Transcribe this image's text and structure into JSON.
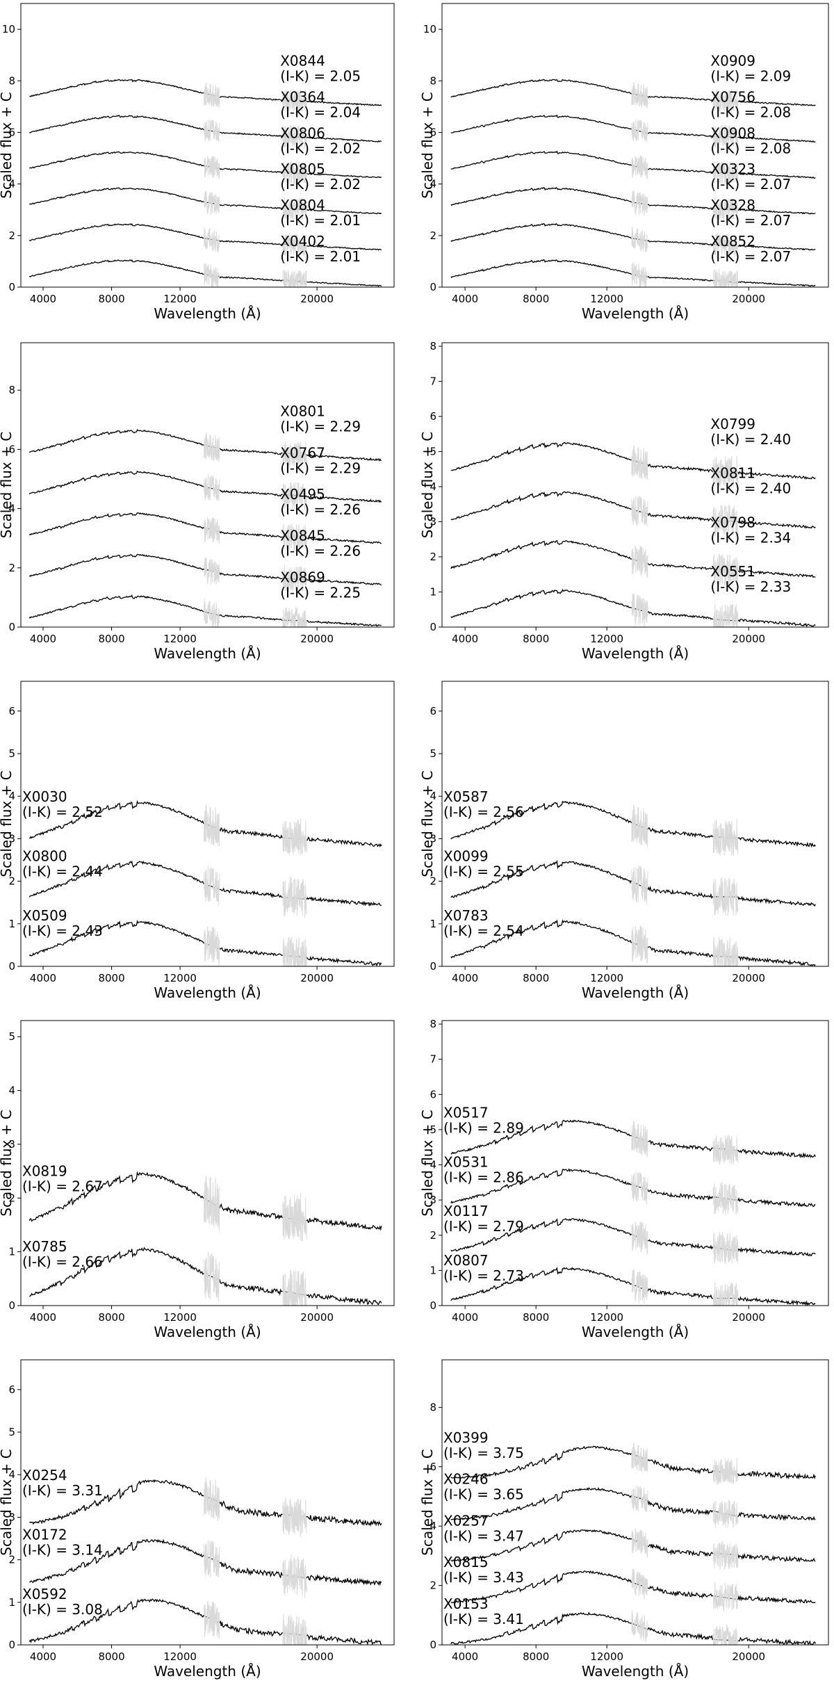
{
  "chart_data": [
    {
      "type": "line",
      "xlabel": "Wavelength (Å)",
      "ylabel": "Scaled flux + C",
      "xticks": [
        4000,
        8000,
        12000,
        20000
      ],
      "ylim": [
        0,
        11
      ],
      "yticks": [
        0,
        2,
        4,
        6,
        8,
        10
      ],
      "label_side": "right",
      "series": [
        {
          "name": "X0844",
          "color_index": "(I-K) = 2.05",
          "offset": 7.0
        },
        {
          "name": "X0364",
          "color_index": "(I-K) = 2.04",
          "offset": 5.6
        },
        {
          "name": "X0806",
          "color_index": "(I-K) = 2.02",
          "offset": 4.2
        },
        {
          "name": "X0805",
          "color_index": "(I-K) = 2.02",
          "offset": 2.8
        },
        {
          "name": "X0804",
          "color_index": "(I-K) = 2.01",
          "offset": 1.4
        },
        {
          "name": "X0402",
          "color_index": "(I-K) = 2.01",
          "offset": 0.0
        }
      ]
    },
    {
      "type": "line",
      "xlabel": "Wavelength (Å)",
      "ylabel": "Scaled flux + C",
      "xticks": [
        4000,
        8000,
        12000,
        20000
      ],
      "ylim": [
        0,
        11
      ],
      "yticks": [
        0,
        2,
        4,
        6,
        8,
        10
      ],
      "label_side": "right",
      "series": [
        {
          "name": "X0909",
          "color_index": "(I-K) = 2.09",
          "offset": 7.0
        },
        {
          "name": "X0756",
          "color_index": "(I-K) = 2.08",
          "offset": 5.6
        },
        {
          "name": "X0908",
          "color_index": "(I-K) = 2.08",
          "offset": 4.2
        },
        {
          "name": "X0323",
          "color_index": "(I-K) = 2.07",
          "offset": 2.8
        },
        {
          "name": "X0328",
          "color_index": "(I-K) = 2.07",
          "offset": 1.4
        },
        {
          "name": "X0852",
          "color_index": "(I-K) = 2.07",
          "offset": 0.0
        }
      ]
    },
    {
      "type": "line",
      "xlabel": "Wavelength (Å)",
      "ylabel": "Scaled flux + C",
      "xticks": [
        4000,
        8000,
        12000,
        20000
      ],
      "ylim": [
        0,
        9.6
      ],
      "yticks": [
        0,
        2,
        4,
        6,
        8
      ],
      "label_side": "right",
      "series": [
        {
          "name": "X0801",
          "color_index": "(I-K) = 2.29",
          "offset": 5.6
        },
        {
          "name": "X0767",
          "color_index": "(I-K) = 2.29",
          "offset": 4.2
        },
        {
          "name": "X0495",
          "color_index": "(I-K) = 2.26",
          "offset": 2.8
        },
        {
          "name": "X0845",
          "color_index": "(I-K) = 2.26",
          "offset": 1.4
        },
        {
          "name": "X0869",
          "color_index": "(I-K) = 2.25",
          "offset": 0.0
        }
      ]
    },
    {
      "type": "line",
      "xlabel": "Wavelength (Å)",
      "ylabel": "Scaled flux + C",
      "xticks": [
        4000,
        8000,
        12000,
        20000
      ],
      "ylim": [
        0,
        8.1
      ],
      "yticks": [
        0,
        1,
        2,
        3,
        4,
        5,
        6,
        7,
        8
      ],
      "label_side": "right",
      "series": [
        {
          "name": "X0799",
          "color_index": "(I-K) = 2.40",
          "offset": 4.2
        },
        {
          "name": "X0811",
          "color_index": "(I-K) = 2.40",
          "offset": 2.8
        },
        {
          "name": "X0798",
          "color_index": "(I-K) = 2.34",
          "offset": 1.4
        },
        {
          "name": "X0551",
          "color_index": "(I-K) = 2.33",
          "offset": 0.0
        }
      ]
    },
    {
      "type": "line",
      "xlabel": "Wavelength (Å)",
      "ylabel": "Scaled flux + C",
      "xticks": [
        4000,
        8000,
        12000,
        20000
      ],
      "ylim": [
        0,
        6.7
      ],
      "yticks": [
        0,
        1,
        2,
        3,
        4,
        5,
        6
      ],
      "label_side": "left",
      "series": [
        {
          "name": "X0030",
          "color_index": "(I-K) = 2.52",
          "offset": 2.8
        },
        {
          "name": "X0800",
          "color_index": "(I-K) = 2.44",
          "offset": 1.4
        },
        {
          "name": "X0509",
          "color_index": "(I-K) = 2.43",
          "offset": 0.0
        }
      ]
    },
    {
      "type": "line",
      "xlabel": "Wavelength (Å)",
      "ylabel": "Scaled flux + C",
      "xticks": [
        4000,
        8000,
        12000,
        20000
      ],
      "ylim": [
        0,
        6.7
      ],
      "yticks": [
        0,
        1,
        2,
        3,
        4,
        5,
        6
      ],
      "label_side": "left",
      "series": [
        {
          "name": "X0587",
          "color_index": "(I-K) = 2.56",
          "offset": 2.8
        },
        {
          "name": "X0099",
          "color_index": "(I-K) = 2.55",
          "offset": 1.4
        },
        {
          "name": "X0783",
          "color_index": "(I-K) = 2.54",
          "offset": 0.0
        }
      ]
    },
    {
      "type": "line",
      "xlabel": "Wavelength (Å)",
      "ylabel": "Scaled flux + C",
      "xticks": [
        4000,
        8000,
        12000,
        20000
      ],
      "ylim": [
        0,
        5.3
      ],
      "yticks": [
        0,
        1,
        2,
        3,
        4,
        5
      ],
      "label_side": "left",
      "series": [
        {
          "name": "X0819",
          "color_index": "(I-K) = 2.67",
          "offset": 1.4
        },
        {
          "name": "X0785",
          "color_index": "(I-K) = 2.66",
          "offset": 0.0
        }
      ]
    },
    {
      "type": "line",
      "xlabel": "Wavelength (Å)",
      "ylabel": "Scaled flux + C",
      "xticks": [
        4000,
        8000,
        12000,
        20000
      ],
      "ylim": [
        0,
        8.1
      ],
      "yticks": [
        0,
        1,
        2,
        3,
        4,
        5,
        6,
        7,
        8
      ],
      "label_side": "left",
      "series": [
        {
          "name": "X0517",
          "color_index": "(I-K) = 2.89",
          "offset": 4.2
        },
        {
          "name": "X0531",
          "color_index": "(I-K) = 2.86",
          "offset": 2.8
        },
        {
          "name": "X0117",
          "color_index": "(I-K) = 2.79",
          "offset": 1.4
        },
        {
          "name": "X0807",
          "color_index": "(I-K) = 2.73",
          "offset": 0.0
        }
      ]
    },
    {
      "type": "line",
      "xlabel": "Wavelength (Å)",
      "ylabel": "Scaled flux + C",
      "xticks": [
        4000,
        8000,
        12000,
        20000
      ],
      "ylim": [
        0,
        6.7
      ],
      "yticks": [
        0,
        1,
        2,
        3,
        4,
        5,
        6
      ],
      "label_side": "left",
      "series": [
        {
          "name": "X0254",
          "color_index": "(I-K) = 3.31",
          "offset": 2.8
        },
        {
          "name": "X0172",
          "color_index": "(I-K) = 3.14",
          "offset": 1.4
        },
        {
          "name": "X0592",
          "color_index": "(I-K) = 3.08",
          "offset": 0.0
        }
      ]
    },
    {
      "type": "line",
      "xlabel": "Wavelength (Å)",
      "ylabel": "Scaled flux + C",
      "xticks": [
        4000,
        8000,
        12000,
        20000
      ],
      "ylim": [
        0,
        9.6
      ],
      "yticks": [
        0,
        2,
        4,
        6,
        8
      ],
      "label_side": "left",
      "series": [
        {
          "name": "X0399",
          "color_index": "(I-K) = 3.75",
          "offset": 5.6
        },
        {
          "name": "X0246",
          "color_index": "(I-K) = 3.65",
          "offset": 4.2
        },
        {
          "name": "X0257",
          "color_index": "(I-K) = 3.47",
          "offset": 2.8
        },
        {
          "name": "X0815",
          "color_index": "(I-K) = 3.43",
          "offset": 1.4
        },
        {
          "name": "X0153",
          "color_index": "(I-K) = 3.41",
          "offset": 0.0
        }
      ]
    }
  ],
  "colors": {
    "spectrum": "#000000",
    "telluric": "#d9d9d9",
    "axes": "#000000"
  }
}
